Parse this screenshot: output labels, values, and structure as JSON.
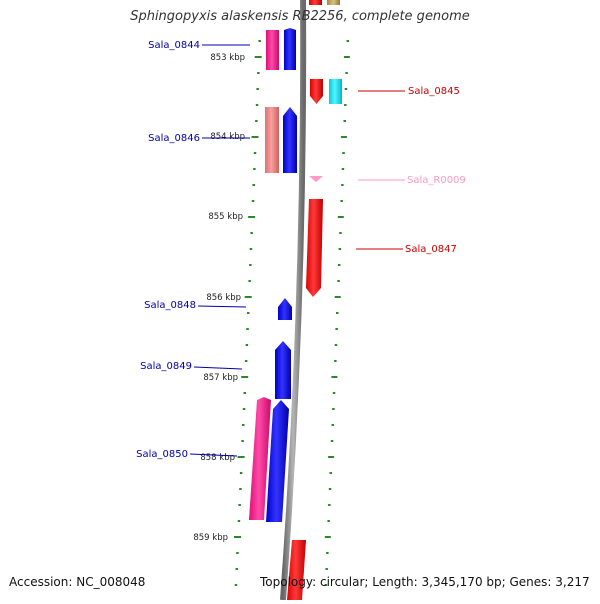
{
  "title": "Sphingopyxis alaskensis RB2256, complete genome",
  "footer": {
    "accession": "Accession: NC_008048",
    "topology": "Topology: circular; Length: 3,345,170 bp; Genes: 3,217"
  },
  "colors": {
    "backbone": "#808080",
    "tick": "#2a8a2a",
    "gene_blue": "#0000ee",
    "gene_magenta": "#ff1493",
    "gene_salmon": "#f08080",
    "gene_red": "#ff0000",
    "gene_cyan": "#00e5ee",
    "rna_pink": "#ff9ac8",
    "label_blue": "#0000aa",
    "label_red": "#cc0000",
    "label_pink": "#ff99bb"
  },
  "ruler": {
    "unit": "kbp",
    "labels": [
      "853 kbp",
      "854 kbp",
      "855 kbp",
      "856 kbp",
      "857 kbp",
      "858 kbp",
      "859 kbp"
    ]
  },
  "features": [
    {
      "name": "Sala_0844",
      "strand": "+",
      "color": "magenta",
      "label_color": "blue"
    },
    {
      "name": "Sala_0845",
      "strand": "-",
      "color": "red",
      "label_color": "red"
    },
    {
      "name": "Sala_0846",
      "strand": "+",
      "color": "salmon",
      "label_color": "blue"
    },
    {
      "name": "Sala_R0009",
      "strand": "-",
      "color": "pink",
      "label_color": "pink"
    },
    {
      "name": "Sala_0847",
      "strand": "-",
      "color": "red",
      "label_color": "red"
    },
    {
      "name": "Sala_0848",
      "strand": "+",
      "color": "blue",
      "label_color": "blue"
    },
    {
      "name": "Sala_0849",
      "strand": "+",
      "color": "blue",
      "label_color": "blue"
    },
    {
      "name": "Sala_0850",
      "strand": "+",
      "color": "magenta",
      "label_color": "blue"
    }
  ]
}
